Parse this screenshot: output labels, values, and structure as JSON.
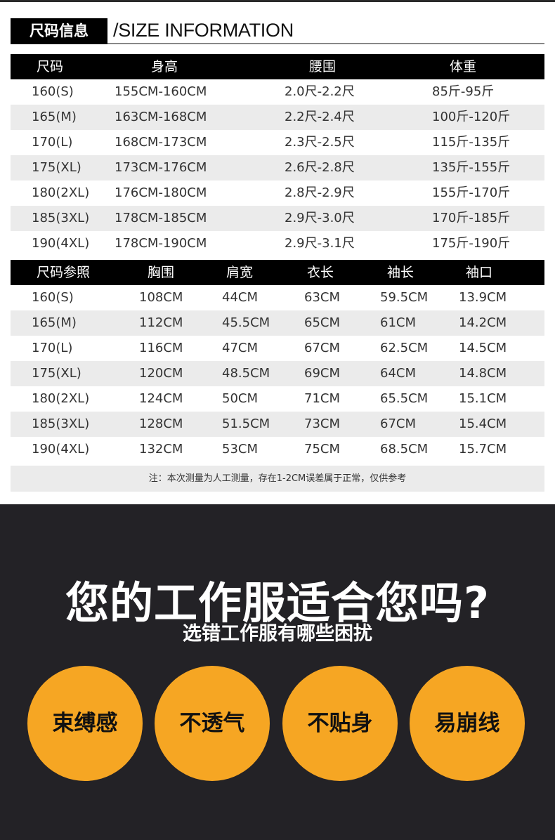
{
  "header": {
    "title_cn": "尺码信息",
    "title_en": "/SIZE INFORMATION"
  },
  "table1": {
    "headers": [
      "尺码",
      "身高",
      "腰围",
      "体重"
    ],
    "rows": [
      [
        "160(S)",
        "155CM-160CM",
        "2.0尺-2.2尺",
        "85斤-95斤"
      ],
      [
        "165(M)",
        "163CM-168CM",
        "2.2尺-2.4尺",
        "100斤-120斤"
      ],
      [
        "170(L)",
        "168CM-173CM",
        "2.3尺-2.5尺",
        "115斤-135斤"
      ],
      [
        "175(XL)",
        "173CM-176CM",
        "2.6尺-2.8尺",
        "135斤-155斤"
      ],
      [
        "180(2XL)",
        "176CM-180CM",
        "2.8尺-2.9尺",
        "155斤-170斤"
      ],
      [
        "185(3XL)",
        "178CM-185CM",
        "2.9尺-3.0尺",
        "170斤-185斤"
      ],
      [
        "190(4XL)",
        "178CM-190CM",
        "2.9尺-3.1尺",
        "175斤-190斤"
      ]
    ]
  },
  "table2": {
    "headers": [
      "尺码参照",
      "胸围",
      "肩宽",
      "衣长",
      "袖长",
      "袖口"
    ],
    "rows": [
      [
        "160(S)",
        "108CM",
        "44CM",
        "63CM",
        "59.5CM",
        "13.9CM"
      ],
      [
        "165(M)",
        "112CM",
        "45.5CM",
        "65CM",
        "61CM",
        "14.2CM"
      ],
      [
        "170(L)",
        "116CM",
        "47CM",
        "67CM",
        "62.5CM",
        "14.5CM"
      ],
      [
        "175(XL)",
        "120CM",
        "48.5CM",
        "69CM",
        "64CM",
        "14.8CM"
      ],
      [
        "180(2XL)",
        "124CM",
        "50CM",
        "71CM",
        "65.5CM",
        "15.1CM"
      ],
      [
        "185(3XL)",
        "128CM",
        "51.5CM",
        "73CM",
        "67CM",
        "15.4CM"
      ],
      [
        "190(4XL)",
        "132CM",
        "53CM",
        "75CM",
        "68.5CM",
        "15.7CM"
      ]
    ]
  },
  "note": "注：本次测量为人工测量，存在1-2CM误差属于正常，仅供参考",
  "promo": {
    "question": "您的工作服适合您吗?",
    "subtitle": "选错工作服有哪些困扰",
    "issues": [
      "束缚感",
      "不透气",
      "不贴身",
      "易崩线"
    ],
    "accent": "#f6a623",
    "background": "#232226"
  }
}
